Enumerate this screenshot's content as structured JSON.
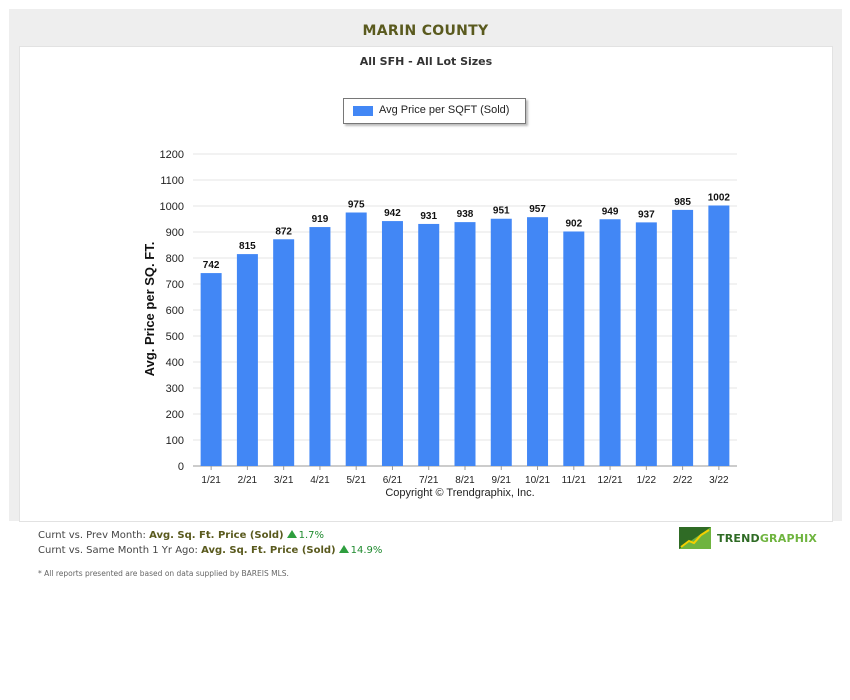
{
  "header": {
    "title": "MARIN COUNTY",
    "subtitle": "All SFH - All Lot Sizes"
  },
  "legend": {
    "label": "Avg Price per SQFT (Sold)"
  },
  "copyright": "Copyright © Trendgraphix, Inc.",
  "stats": {
    "line1": {
      "prefix": "Curnt vs. Prev Month:",
      "metric": "Avg. Sq. Ft. Price (Sold)",
      "change": "1.7%"
    },
    "line2": {
      "prefix": "Curnt vs. Same Month 1 Yr Ago:",
      "metric": "Avg. Sq. Ft. Price (Sold)",
      "change": "14.9%"
    }
  },
  "footnote": "* All reports presented are based on data supplied by BAREIS MLS.",
  "logo": {
    "part1": "TREND",
    "part2": "GRAPHIX"
  },
  "colors": {
    "bar": "#4287f5",
    "title": "#5a5a1e",
    "up": "#2e9e3e",
    "logo_dark": "#2f6b25",
    "logo_light": "#6fb43f"
  },
  "chart_data": {
    "type": "bar",
    "categories": [
      "1/21",
      "2/21",
      "3/21",
      "4/21",
      "5/21",
      "6/21",
      "7/21",
      "8/21",
      "9/21",
      "10/21",
      "11/21",
      "12/21",
      "1/22",
      "2/22",
      "3/22"
    ],
    "series": [
      {
        "name": "Avg Price per SQFT (Sold)",
        "values": [
          742,
          815,
          872,
          919,
          975,
          942,
          931,
          938,
          951,
          957,
          902,
          949,
          937,
          985,
          1002
        ]
      }
    ],
    "title": "MARIN COUNTY",
    "subtitle": "All SFH - All Lot Sizes",
    "xlabel": "",
    "ylabel": "Avg. Price per SQ. FT.",
    "ylim": [
      0,
      1200
    ],
    "yticks": [
      0,
      100,
      200,
      300,
      400,
      500,
      600,
      700,
      800,
      900,
      1000,
      1100,
      1200
    ],
    "grid": true,
    "legend_position": "top-center",
    "data_labels": true
  }
}
